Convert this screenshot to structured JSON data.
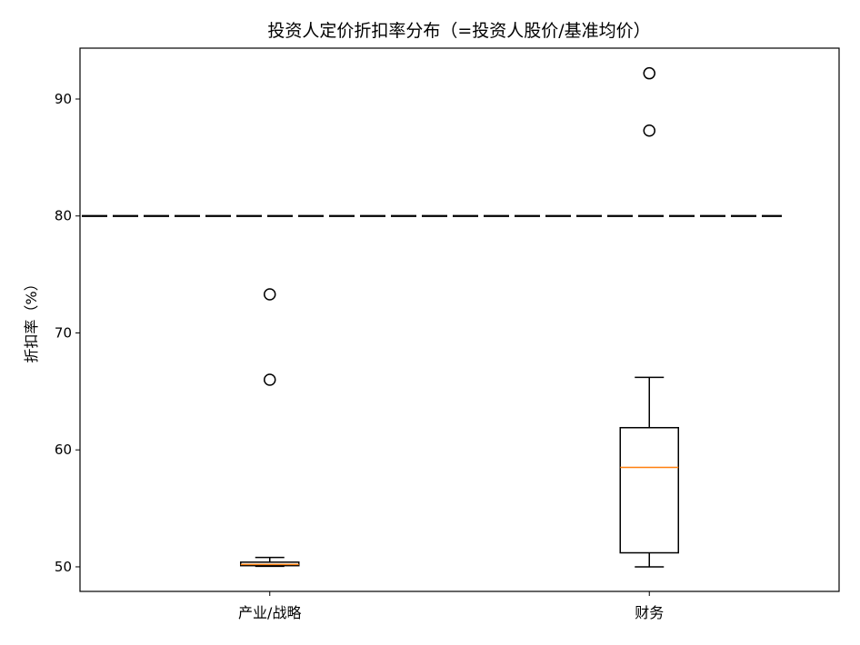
{
  "chart_data": {
    "type": "box",
    "title": "投资人定价折扣率分布（=投资人股价/基准均价）",
    "xlabel": "",
    "ylabel": "折扣率（%）",
    "ylim": [
      47.9,
      94.35
    ],
    "yticks": [
      50,
      60,
      70,
      80,
      90
    ],
    "categories": [
      "产业/战略",
      "财务"
    ],
    "boxes": [
      {
        "whisker_low": 50.05,
        "q1": 50.1,
        "median": 50.2,
        "q3": 50.4,
        "whisker_high": 50.8,
        "outliers": [
          66.0,
          73.3
        ]
      },
      {
        "whisker_low": 50.0,
        "q1": 51.2,
        "median": 58.5,
        "q3": 61.9,
        "whisker_high": 66.2,
        "outliers": [
          87.3,
          92.2
        ]
      }
    ],
    "reference_line": {
      "y": 80,
      "style": "dashed",
      "color": "#000000"
    },
    "median_color": "#ff7f0e",
    "grid": false
  }
}
